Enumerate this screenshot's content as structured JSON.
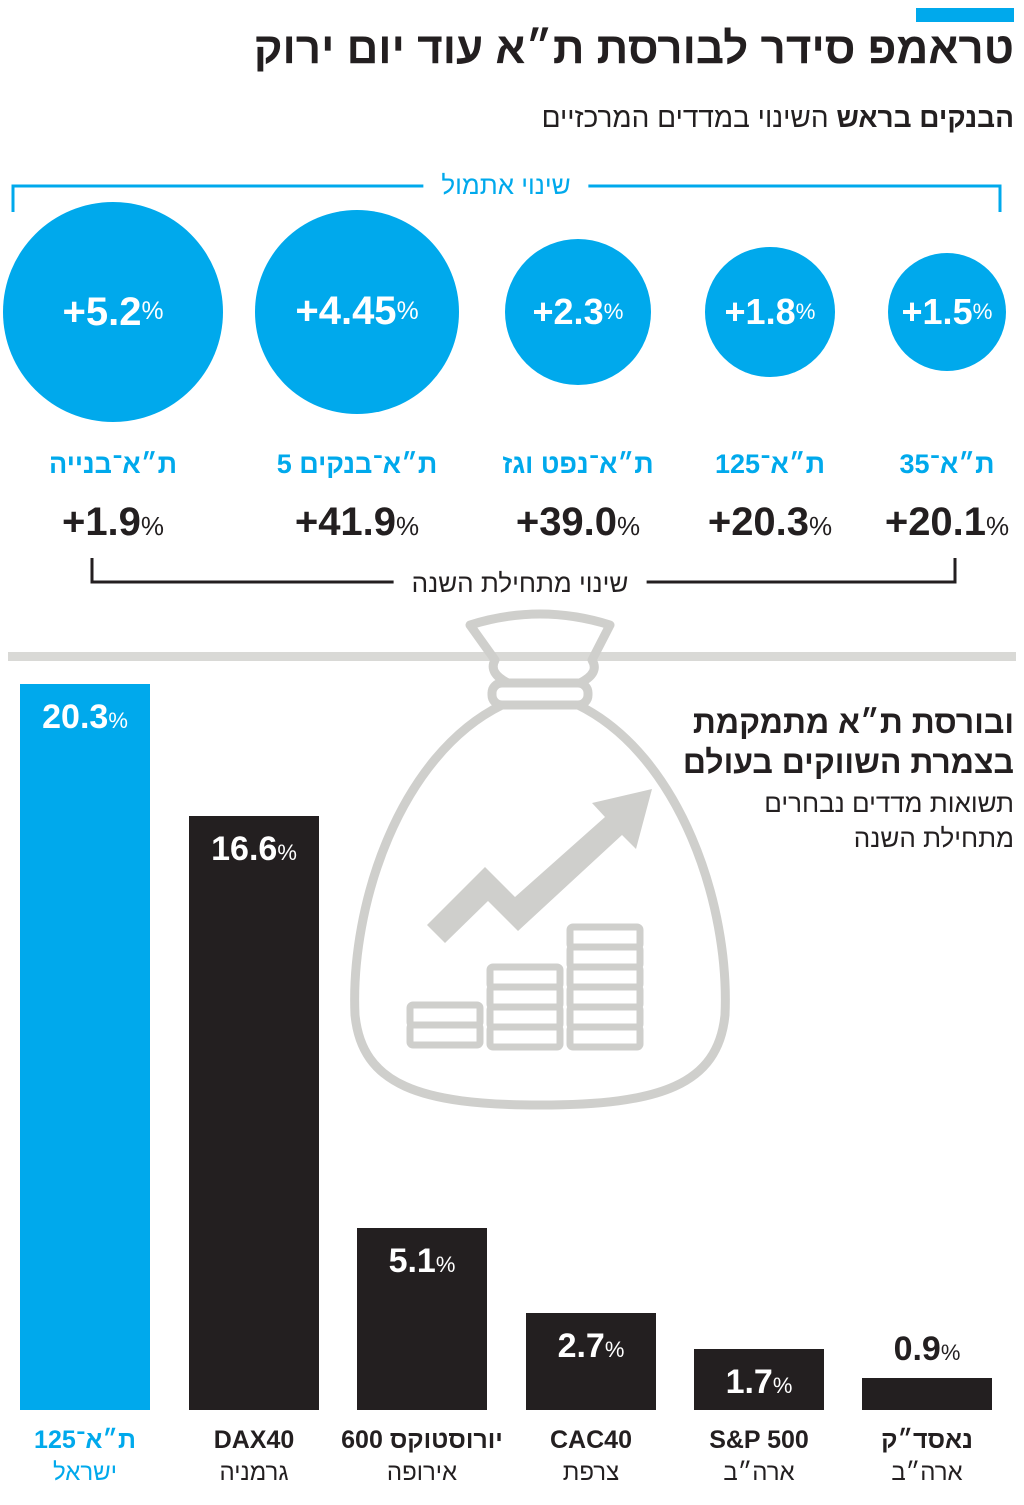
{
  "header": {
    "title": "טראמפ סידר לבורסת ת״א עוד יום ירוק",
    "subtitle_bold": "הבנקים בראש",
    "subtitle_rest": "השינוי במדדים המרכזיים"
  },
  "colors": {
    "accent": "#00a9ec",
    "dark": "#231f20",
    "muted": "#d9d9d6",
    "icon": "#cfcfcc"
  },
  "chart_data": [
    {
      "type": "bubble",
      "title": "הבנקים בראש השינוי במדדים המרכזיים",
      "daily_label": "שינוי אתמול",
      "ytd_label": "שינוי מתחילת השנה",
      "categories": [
        "ת״א־35",
        "ת״א־125",
        "ת״א־נפט וגז",
        "ת״א־בנקים 5",
        "ת״א־בנייה"
      ],
      "daily_change": [
        1.5,
        1.8,
        2.3,
        4.45,
        5.2
      ],
      "daily_text": [
        "+1.5",
        "+1.8",
        "+2.3",
        "+4.45",
        "+5.2"
      ],
      "ytd_change": [
        20.1,
        20.3,
        39.0,
        41.9,
        1.9
      ],
      "ytd_text": [
        "+20.1",
        "+20.3",
        "+39.0",
        "+41.9",
        "+1.9"
      ],
      "unit": "%"
    },
    {
      "type": "bar",
      "title": "ובורסת ת״א מתמקמת בצמרת השווקים בעולם",
      "title_line1": "ובורסת ת״א מתמקמת",
      "title_line2": "בצמרת השווקים בעולם",
      "subtitle_line1": "תשואות מדדים נבחרים",
      "subtitle_line2": "מתחילת השנה",
      "categories": [
        "ת״א־125",
        "DAX40",
        "יורוסטוקס 600",
        "CAC40",
        "S&P 500",
        "נאסד״ק"
      ],
      "countries": [
        "ישראל",
        "גרמניה",
        "אירופה",
        "צרפת",
        "ארה״ב",
        "ארה״ב"
      ],
      "values": [
        20.3,
        16.6,
        5.1,
        2.7,
        1.7,
        0.9
      ],
      "value_text": [
        "20.3",
        "16.6",
        "5.1",
        "2.7",
        "1.7",
        "0.9"
      ],
      "unit": "%",
      "ylim": [
        0,
        20.3
      ]
    }
  ]
}
